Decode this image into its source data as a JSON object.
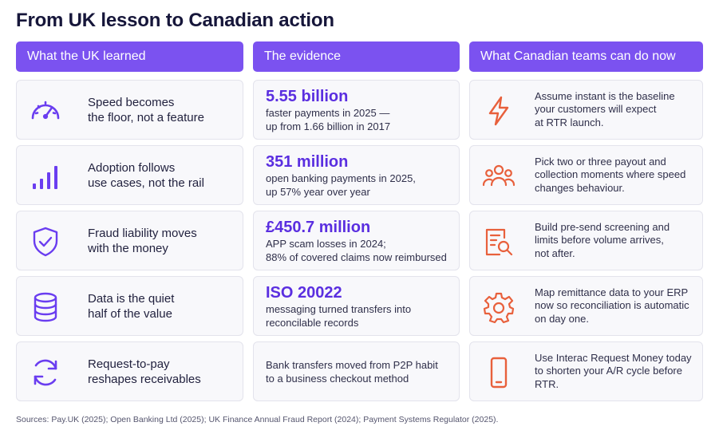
{
  "title": "From UK lesson to Canadian action",
  "headers": {
    "lessons": "What the UK learned",
    "evidence": "The evidence",
    "actions": "What Canadian teams can do now"
  },
  "colors": {
    "accent": "#7b52f0",
    "stat": "#5a2ee0",
    "lesson_icon": "#6a3df0",
    "action_icon": "#e8603c"
  },
  "rows": [
    {
      "lesson_icon": "speedometer-icon",
      "lesson_line1": "Speed becomes",
      "lesson_line2": "the floor, not a feature",
      "evidence_stat": "5.55 billion",
      "evidence_line1": "faster payments in 2025 —",
      "evidence_line2": "up from 1.66 billion in 2017",
      "action_icon": "lightning-icon",
      "action_line1": "Assume instant is the baseline",
      "action_line2": "your customers will expect",
      "action_line3": "at RTR launch."
    },
    {
      "lesson_icon": "bar-chart-icon",
      "lesson_line1": "Adoption follows",
      "lesson_line2": "use cases, not the rail",
      "evidence_stat": "351 million",
      "evidence_line1": "open banking payments in 2025,",
      "evidence_line2": "up 57% year over year",
      "action_icon": "people-icon",
      "action_line1": "Pick two or three payout and",
      "action_line2": "collection moments where speed",
      "action_line3": "changes behaviour."
    },
    {
      "lesson_icon": "shield-check-icon",
      "lesson_line1": "Fraud liability moves",
      "lesson_line2": "with the money",
      "evidence_stat": "£450.7 million",
      "evidence_line1": "APP scam losses in 2024;",
      "evidence_line2": "88% of covered claims now reimbursed",
      "action_icon": "document-search-icon",
      "action_line1": "Build pre-send screening and",
      "action_line2": "limits before volume arrives,",
      "action_line3": "not after."
    },
    {
      "lesson_icon": "database-icon",
      "lesson_line1": "Data is the quiet",
      "lesson_line2": "half of the value",
      "evidence_stat": "ISO 20022",
      "evidence_line1": "messaging turned transfers into",
      "evidence_line2": "reconcilable records",
      "action_icon": "gear-icon",
      "action_line1": "Map remittance data to your ERP",
      "action_line2": "now so reconciliation is automatic",
      "action_line3": "on day one."
    },
    {
      "lesson_icon": "refresh-arrows-icon",
      "lesson_line1": "Request-to-pay",
      "lesson_line2": "reshapes receivables",
      "evidence_stat": "",
      "evidence_line1": "Bank transfers moved from P2P habit",
      "evidence_line2": "to a business checkout method",
      "action_icon": "mobile-phone-icon",
      "action_line1": "Use Interac Request Money today",
      "action_line2": "to shorten your A/R cycle before",
      "action_line3": "RTR."
    }
  ],
  "sources": "Sources: Pay.UK (2025); Open Banking Ltd (2025); UK Finance Annual Fraud Report (2024); Payment Systems Regulator (2025)."
}
